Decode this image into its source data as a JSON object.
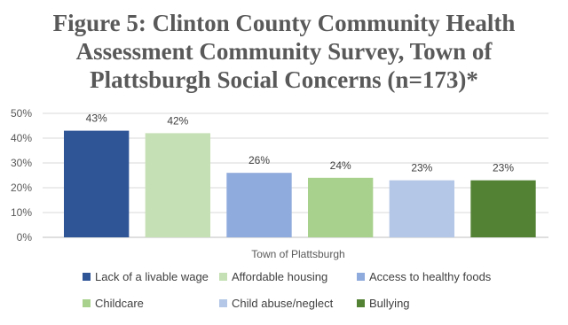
{
  "chart_data": {
    "type": "bar",
    "title_lines": [
      "Figure 5: Clinton County Community Health",
      "Assessment Community Survey, Town of",
      "Plattsburgh Social Concerns (n=173)*"
    ],
    "xlabel": "Town of Plattsburgh",
    "ylabel": "",
    "ylim": [
      0,
      50
    ],
    "yticks": [
      "0%",
      "10%",
      "20%",
      "30%",
      "40%",
      "50%"
    ],
    "grid": true,
    "legend_position": "bottom",
    "series": [
      {
        "name": "Lack of a livable wage",
        "value": 43,
        "label": "43%",
        "color": "#2f5597"
      },
      {
        "name": "Affordable housing",
        "value": 42,
        "label": "42%",
        "color": "#c5e0b4"
      },
      {
        "name": "Access to healthy foods",
        "value": 26,
        "label": "26%",
        "color": "#8faadc"
      },
      {
        "name": "Childcare",
        "value": 24,
        "label": "24%",
        "color": "#a9d18e"
      },
      {
        "name": "Child abuse/neglect",
        "value": 23,
        "label": "23%",
        "color": "#b4c7e7"
      },
      {
        "name": "Bullying",
        "value": 23,
        "label": "23%",
        "color": "#548235"
      }
    ]
  }
}
